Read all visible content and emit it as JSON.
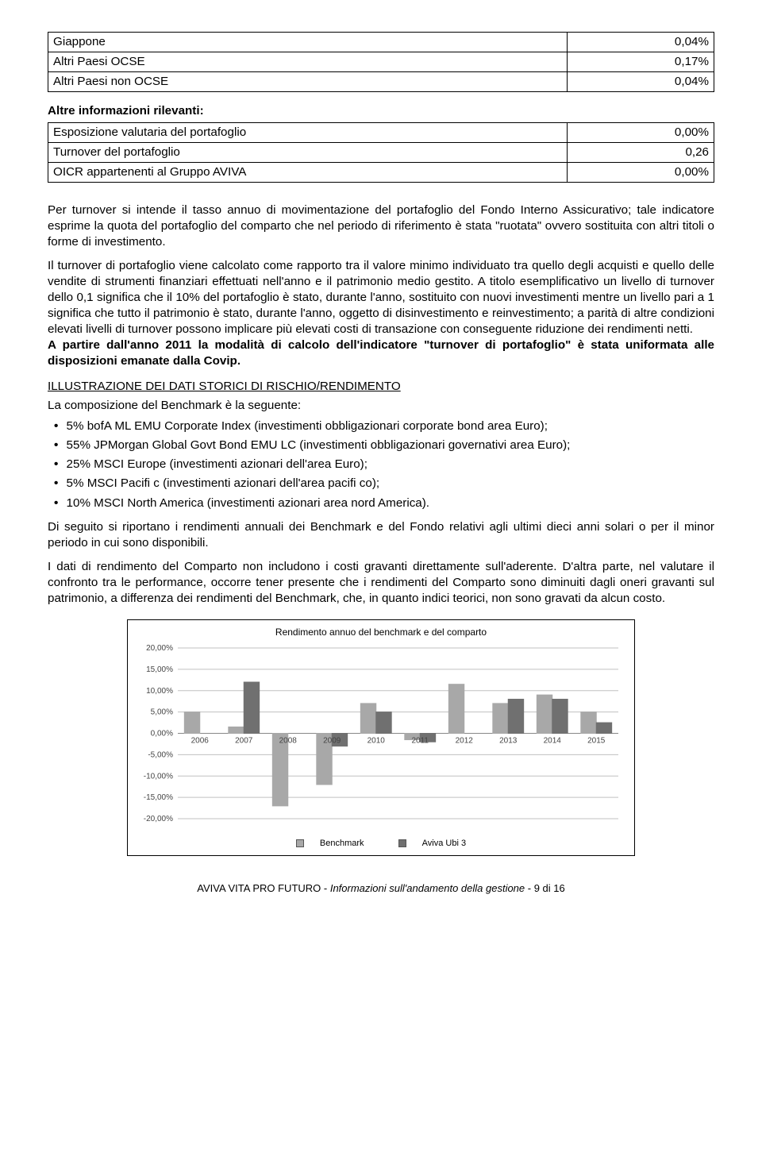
{
  "table1": {
    "rows": [
      {
        "label": "Giappone",
        "value": "0,04%"
      },
      {
        "label": "Altri Paesi OCSE",
        "value": "0,17%"
      },
      {
        "label": "Altri Paesi non OCSE",
        "value": "0,04%"
      }
    ]
  },
  "sec1_title": "Altre informazioni rilevanti:",
  "table2": {
    "rows": [
      {
        "label": "Esposizione valutaria del portafoglio",
        "value": "0,00%"
      },
      {
        "label": "Turnover del portafoglio",
        "value": "0,26"
      },
      {
        "label": "OICR appartenenti al Gruppo AVIVA",
        "value": "0,00%"
      }
    ]
  },
  "para1": "Per turnover si intende il tasso annuo di movimentazione del portafoglio del Fondo Interno Assicurativo; tale indicatore esprime la quota del portafoglio del comparto che nel periodo di riferimento è stata \"ruotata\" ovvero sostituita con altri titoli o forme di investimento.",
  "para2": "Il turnover di portafoglio viene calcolato come rapporto tra il valore minimo individuato tra quello degli acquisti e quello delle vendite di strumenti finanziari effettuati nell'anno e il patrimonio medio gestito. A titolo esemplificativo un livello di turnover dello 0,1 significa che il 10% del portafoglio è stato, durante l'anno, sostituito con nuovi investimenti mentre un livello pari a 1 significa che tutto il patrimonio è stato, durante l'anno, oggetto di disinvestimento e reinvestimento; a parità di altre condizioni elevati livelli di turnover possono implicare più elevati costi di transazione con conseguente riduzione dei rendimenti netti.",
  "para3_bold": "A partire dall'anno 2011 la modalità di calcolo dell'indicatore \"turnover di portafoglio\" è stata uniformata alle disposizioni emanate dalla Covip.",
  "illus_title": "ILLUSTRAZIONE DEI DATI STORICI DI RISCHIO/RENDIMENTO",
  "illus_sub": "La composizione del Benchmark è la seguente:",
  "bench_items": [
    "5%   bofA ML EMU Corporate Index (investimenti obbligazionari corporate bond area Euro);",
    "55%  JPMorgan Global Govt Bond EMU LC (investimenti obbligazionari governativi area Euro);",
    "25%  MSCI Europe (investimenti azionari dell'area Euro);",
    "5%   MSCI Pacifi c (investimenti azionari dell'area pacifi co);",
    "10%  MSCI North America (investimenti azionari area nord America)."
  ],
  "para4": "Di seguito si riportano i rendimenti annuali dei Benchmark e del Fondo relativi agli ultimi dieci anni solari o per il minor periodo in cui sono disponibili.",
  "para5": "I dati di rendimento del Comparto non includono i costi gravanti direttamente sull'aderente. D'altra parte, nel valutare il confronto tra le performance, occorre tener presente che i rendimenti del Comparto sono diminuiti dagli oneri gravanti sul patrimonio, a differenza dei rendimenti del Benchmark, che, in quanto indici teorici, non sono gravati da alcun costo.",
  "chart": {
    "type": "bar",
    "title": "Rendimento annuo del benchmark e del comparto",
    "years": [
      "2006",
      "2007",
      "2008",
      "2009",
      "2010",
      "2011",
      "2012",
      "2013",
      "2014",
      "2015"
    ],
    "benchmark": [
      5.0,
      1.5,
      -17.0,
      -12.0,
      7.0,
      -1.5,
      11.5,
      7.0,
      9.0,
      5.0
    ],
    "comparto": [
      null,
      12.0,
      null,
      -3.0,
      5.0,
      -2.0,
      null,
      8.0,
      8.0,
      2.5
    ],
    "colors": {
      "benchmark": "#a8a8a8",
      "comparto": "#707070",
      "grid": "#c0c0c0",
      "axis": "#888888",
      "text": "#444444",
      "box": "#000000",
      "bg": "#ffffff"
    },
    "ylim": [
      -20,
      20
    ],
    "ytick_step": 5,
    "ytick_labels": [
      "-20,00%",
      "-15,00%",
      "-10,00%",
      "-5,00%",
      "0,00%",
      "5,00%",
      "10,00%",
      "15,00%",
      "20,00%"
    ],
    "bar_width": 0.35,
    "legend": [
      "Benchmark",
      "Aviva Ubi 3"
    ]
  },
  "footer": {
    "brand": "AVIVA VITA PRO FUTURO",
    "sep": " - ",
    "section": "Informazioni sull'andamento della gestione",
    "page": " - 9 di 16"
  }
}
